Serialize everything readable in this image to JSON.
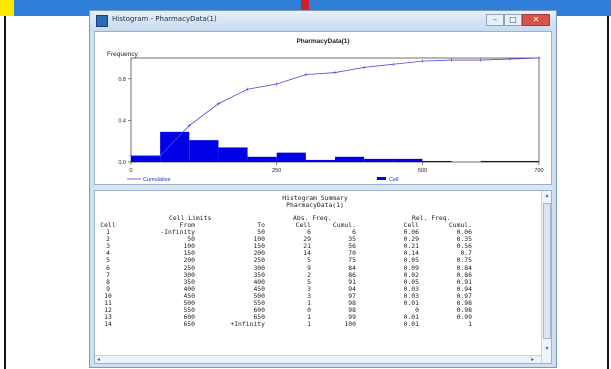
{
  "window": {
    "title": "Histogram - PharmacyData(1)",
    "minimize": "–",
    "maximize": "□",
    "close": "✕"
  },
  "chart_data": {
    "type": "bar",
    "title": "PharmacyData(1)",
    "ylabel": "Frequency",
    "xlabel": "",
    "xlim": [
      0,
      700
    ],
    "ylim": [
      0,
      1
    ],
    "x_ticks": [
      "0",
      "250",
      "500",
      "700"
    ],
    "y_ticks": [
      "0.0",
      "0.4",
      "0.8"
    ],
    "bin_width": 50,
    "bins": [
      0,
      50,
      100,
      150,
      200,
      250,
      300,
      350,
      400,
      450,
      500,
      550,
      600,
      650
    ],
    "values": [
      0.06,
      0.29,
      0.21,
      0.14,
      0.05,
      0.09,
      0.02,
      0.05,
      0.03,
      0.03,
      0.01,
      0.0,
      0.01,
      0.01
    ],
    "series": [
      {
        "name": "Cumulative",
        "x": [
          0,
          50,
          100,
          150,
          200,
          250,
          300,
          350,
          400,
          450,
          500,
          550,
          600,
          650,
          700
        ],
        "values": [
          0.06,
          0.06,
          0.35,
          0.56,
          0.7,
          0.75,
          0.84,
          0.86,
          0.91,
          0.94,
          0.97,
          0.98,
          0.98,
          0.99,
          1.0
        ]
      },
      {
        "name": "Cell"
      }
    ],
    "colors": {
      "bars": "#0000e6",
      "cumulative": "#4a4adf",
      "axis": "#222222"
    }
  },
  "summary": {
    "title": "Histogram Summary",
    "subtitle": "PharmacyData(1)",
    "group_headers": {
      "limits": "Cell Limits",
      "abs": "Abs. Freq.",
      "rel": "Rel. Freq."
    },
    "columns": {
      "cell": "Cell",
      "from": "From",
      "to": "To",
      "abs_cell": "Cell",
      "abs_cumul": "Cumul.",
      "rel_cell": "Cell",
      "rel_cumul": "Cumul."
    },
    "rows": [
      {
        "cell": "1",
        "from": "-Infinity",
        "to": "50",
        "abs": "6",
        "abs_cumul": "6",
        "rel": "0.06",
        "rel_cumul": "0.06"
      },
      {
        "cell": "2",
        "from": "50",
        "to": "100",
        "abs": "29",
        "abs_cumul": "35",
        "rel": "0.29",
        "rel_cumul": "0.35"
      },
      {
        "cell": "3",
        "from": "100",
        "to": "150",
        "abs": "21",
        "abs_cumul": "56",
        "rel": "0.21",
        "rel_cumul": "0.56"
      },
      {
        "cell": "4",
        "from": "150",
        "to": "200",
        "abs": "14",
        "abs_cumul": "70",
        "rel": "0.14",
        "rel_cumul": "0.7"
      },
      {
        "cell": "5",
        "from": "200",
        "to": "250",
        "abs": "5",
        "abs_cumul": "75",
        "rel": "0.05",
        "rel_cumul": "0.75"
      },
      {
        "cell": "6",
        "from": "250",
        "to": "300",
        "abs": "9",
        "abs_cumul": "84",
        "rel": "0.09",
        "rel_cumul": "0.84"
      },
      {
        "cell": "7",
        "from": "300",
        "to": "350",
        "abs": "2",
        "abs_cumul": "86",
        "rel": "0.02",
        "rel_cumul": "0.86"
      },
      {
        "cell": "8",
        "from": "350",
        "to": "400",
        "abs": "5",
        "abs_cumul": "91",
        "rel": "0.05",
        "rel_cumul": "0.91"
      },
      {
        "cell": "9",
        "from": "400",
        "to": "450",
        "abs": "3",
        "abs_cumul": "94",
        "rel": "0.03",
        "rel_cumul": "0.94"
      },
      {
        "cell": "10",
        "from": "450",
        "to": "500",
        "abs": "3",
        "abs_cumul": "97",
        "rel": "0.03",
        "rel_cumul": "0.97"
      },
      {
        "cell": "11",
        "from": "500",
        "to": "550",
        "abs": "1",
        "abs_cumul": "98",
        "rel": "0.01",
        "rel_cumul": "0.98"
      },
      {
        "cell": "12",
        "from": "550",
        "to": "600",
        "abs": "0",
        "abs_cumul": "98",
        "rel": "0",
        "rel_cumul": "0.98"
      },
      {
        "cell": "13",
        "from": "600",
        "to": "650",
        "abs": "1",
        "abs_cumul": "99",
        "rel": "0.01",
        "rel_cumul": "0.99"
      },
      {
        "cell": "14",
        "from": "650",
        "to": "+Infinity",
        "abs": "1",
        "abs_cumul": "100",
        "rel": "0.01",
        "rel_cumul": "1"
      }
    ]
  },
  "scroll": {
    "up": "▴",
    "down": "▾",
    "left": "◂",
    "right": "▸"
  },
  "colors": {
    "top_strip": "#2f7fd8",
    "yellow_block": "#ffe800",
    "red_mark": "#d21f2a",
    "window_frame": "#cfe0f3"
  }
}
